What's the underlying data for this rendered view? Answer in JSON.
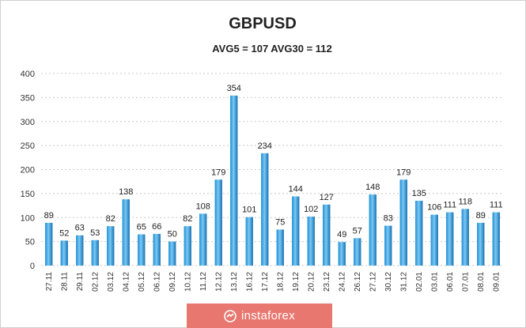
{
  "chart_data": {
    "type": "bar",
    "title": "GBPUSD",
    "subtitle": "AVG5 = 107 AVG30 = 112",
    "categories": [
      "27.11",
      "28.11",
      "29.11",
      "02.12",
      "03.12",
      "04.12",
      "05.12",
      "06.12",
      "09.12",
      "10.12",
      "11.12",
      "12.12",
      "13.12",
      "16.12",
      "17.12",
      "18.12",
      "19.12",
      "20.12",
      "23.12",
      "24.12",
      "26.12",
      "27.12",
      "30.12",
      "31.12",
      "02.01",
      "03.01",
      "06.01",
      "07.01",
      "08.01",
      "09.01"
    ],
    "values": [
      89,
      52,
      63,
      53,
      82,
      138,
      65,
      66,
      50,
      82,
      108,
      179,
      354,
      101,
      234,
      75,
      144,
      102,
      127,
      49,
      57,
      148,
      83,
      179,
      135,
      106,
      111,
      118,
      89,
      111
    ],
    "ylim": [
      0,
      400
    ],
    "yticks": [
      0,
      50,
      100,
      150,
      200,
      250,
      300,
      350,
      400
    ],
    "grid": true,
    "bar_color": "#1c8fd6",
    "bar_highlight": "#7cc8f2",
    "data_labels": true
  },
  "watermark": {
    "text": "instaforex",
    "color": "#e8776f"
  }
}
